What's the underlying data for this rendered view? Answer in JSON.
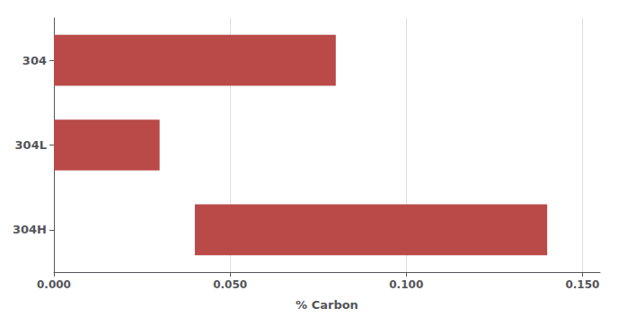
{
  "chart_data": {
    "type": "bar",
    "orientation": "horizontal",
    "categories": [
      "304H",
      "304L",
      "304"
    ],
    "values": [
      0.1,
      0.03,
      0.08
    ],
    "lefts": [
      0.04,
      0.0,
      0.0
    ],
    "color": "#b94a48",
    "xlabel": "% Carbon",
    "xlim": [
      0.0,
      0.155
    ],
    "xticks": [
      {
        "value": 0.0,
        "label": "0.000"
      },
      {
        "value": 0.05,
        "label": "0.050"
      },
      {
        "value": 0.1,
        "label": "0.100"
      },
      {
        "value": 0.15,
        "label": "0.150"
      }
    ],
    "grid": true
  }
}
